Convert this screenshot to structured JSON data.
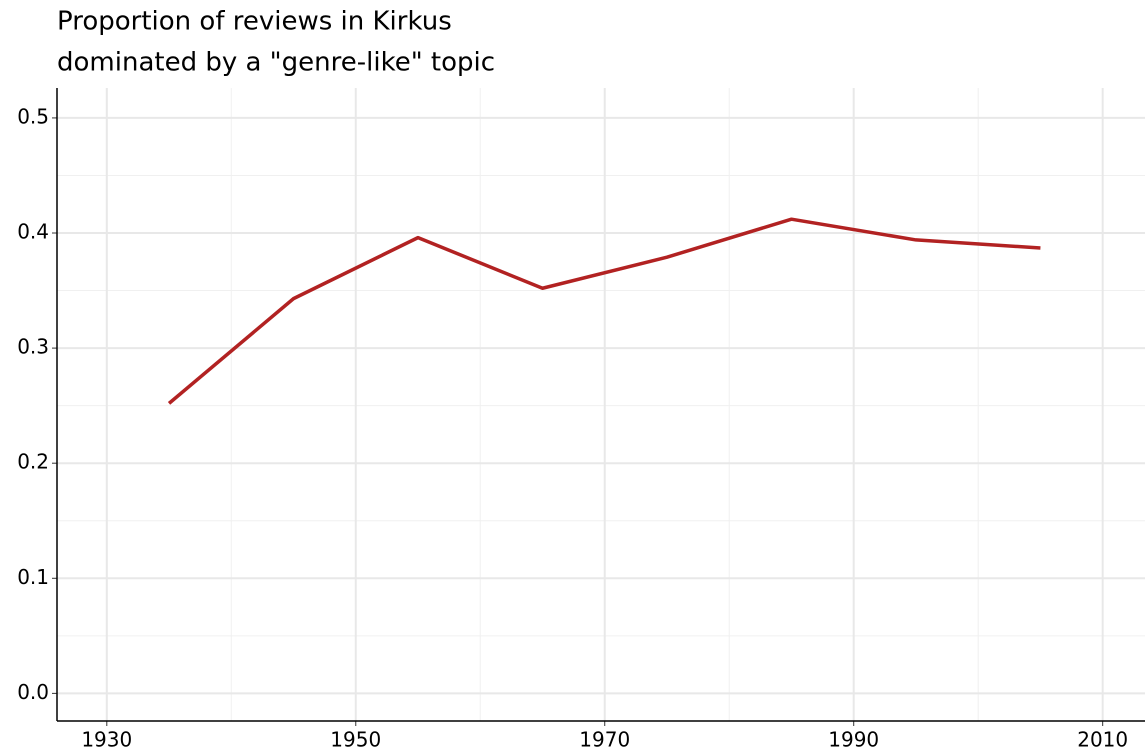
{
  "chart_data": {
    "type": "line",
    "title": [
      "Proportion of reviews in Kirkus",
      "dominated by a \"genre-like\" topic"
    ],
    "x": [
      1935,
      1945,
      1955,
      1965,
      1975,
      1985,
      1995,
      2005
    ],
    "series": [
      {
        "name": "genre-like",
        "color": "#b22222",
        "values": [
          0.252,
          0.343,
          0.396,
          0.352,
          0.379,
          0.412,
          0.394,
          0.387
        ]
      }
    ],
    "xlim": [
      1926,
      2013.4
    ],
    "ylim": [
      -0.024,
      0.526
    ],
    "xticks": [
      1930,
      1950,
      1970,
      1990,
      2010
    ],
    "yticks": [
      {
        "value": 0,
        "label": "0.0"
      },
      0.1,
      0.2,
      0.3,
      0.4,
      0.5
    ],
    "xminorticks": [
      1940,
      1960,
      1980,
      2000
    ],
    "yminorticks": [
      0.05,
      0.15,
      0.25,
      0.35,
      0.45
    ],
    "grid": true
  }
}
